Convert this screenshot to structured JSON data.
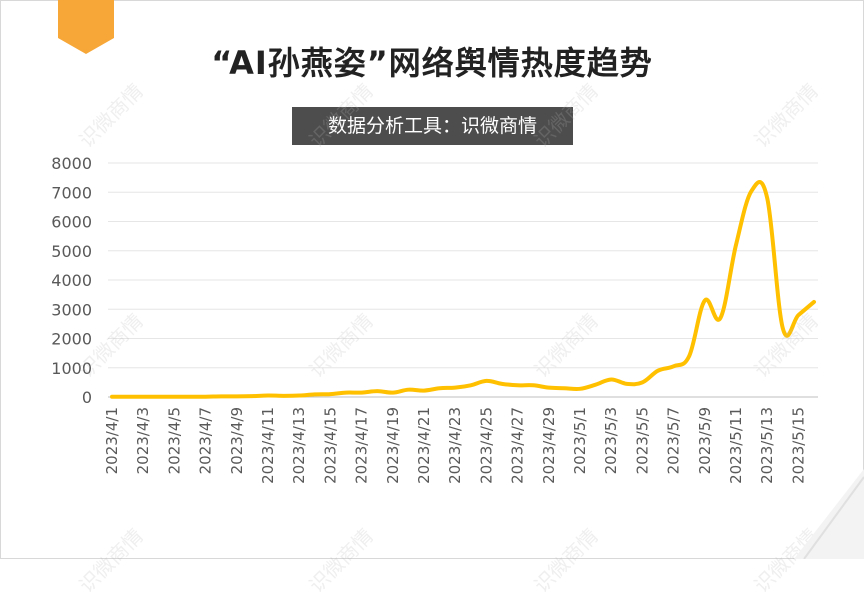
{
  "title": "“AI孙燕姿”网络舆情热度趋势",
  "subtitle": "数据分析工具：识微商情",
  "watermark_text": "识微商情",
  "colors": {
    "line": "#FFC000",
    "ribbon": "#F7A738",
    "subtitle_bg": "#4d4d4d",
    "grid": "#e6e6e6",
    "axis_text": "#595959"
  },
  "chart_data": {
    "type": "line",
    "title": "“AI孙燕姿”网络舆情热度趋势",
    "xlabel": "",
    "ylabel": "",
    "ylim": [
      0,
      8000
    ],
    "yticks": [
      0,
      1000,
      2000,
      3000,
      4000,
      5000,
      6000,
      7000,
      8000
    ],
    "x": [
      "2023/4/1",
      "2023/4/2",
      "2023/4/3",
      "2023/4/4",
      "2023/4/5",
      "2023/4/6",
      "2023/4/7",
      "2023/4/8",
      "2023/4/9",
      "2023/4/10",
      "2023/4/11",
      "2023/4/12",
      "2023/4/13",
      "2023/4/14",
      "2023/4/15",
      "2023/4/16",
      "2023/4/17",
      "2023/4/18",
      "2023/4/19",
      "2023/4/20",
      "2023/4/21",
      "2023/4/22",
      "2023/4/23",
      "2023/4/24",
      "2023/4/25",
      "2023/4/26",
      "2023/4/27",
      "2023/4/28",
      "2023/4/29",
      "2023/4/30",
      "2023/5/1",
      "2023/5/2",
      "2023/5/3",
      "2023/5/4",
      "2023/5/5",
      "2023/5/6",
      "2023/5/7",
      "2023/5/8",
      "2023/5/9",
      "2023/5/10",
      "2023/5/11",
      "2023/5/12",
      "2023/5/13",
      "2023/5/14",
      "2023/5/15",
      "2023/5/16"
    ],
    "xtick_labels": [
      "2023/4/1",
      "2023/4/3",
      "2023/4/5",
      "2023/4/7",
      "2023/4/9",
      "2023/4/11",
      "2023/4/13",
      "2023/4/15",
      "2023/4/17",
      "2023/4/19",
      "2023/4/21",
      "2023/4/23",
      "2023/4/25",
      "2023/4/27",
      "2023/4/29",
      "2023/5/1",
      "2023/5/3",
      "2023/5/5",
      "2023/5/7",
      "2023/5/9",
      "2023/5/11",
      "2023/5/13",
      "2023/5/15"
    ],
    "series": [
      {
        "values": [
          10,
          10,
          10,
          10,
          10,
          10,
          10,
          20,
          20,
          30,
          50,
          40,
          50,
          90,
          100,
          150,
          150,
          200,
          150,
          250,
          220,
          300,
          320,
          400,
          550,
          450,
          400,
          400,
          320,
          300,
          280,
          420,
          600,
          450,
          500,
          900,
          1050,
          1400,
          3300,
          2700,
          5200,
          7050,
          6800,
          2350,
          2800,
          3250
        ]
      }
    ],
    "grid": true,
    "legend": "none"
  }
}
